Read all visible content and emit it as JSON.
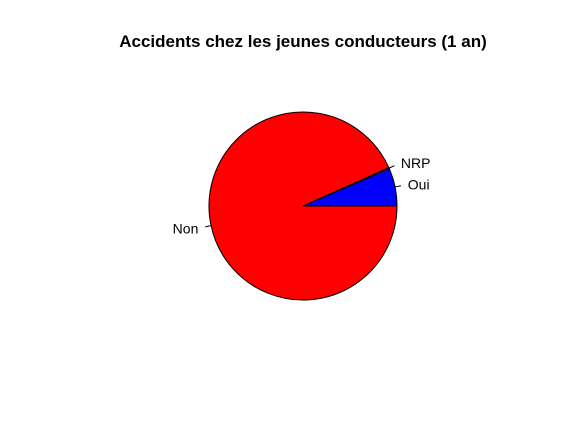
{
  "chart_data": {
    "type": "pie",
    "title": "Accidents chez les jeunes conducteurs (1 an)",
    "slices": [
      {
        "label": "Oui",
        "value": 6.5,
        "color": "#0000ff"
      },
      {
        "label": "NRP",
        "value": 0.2,
        "color": "#ff0000"
      },
      {
        "label": "Non",
        "value": 93.3,
        "color": "#ff0000"
      }
    ],
    "start_angle_deg": 0,
    "direction": "counterclockwise",
    "border_color": "#000000"
  }
}
